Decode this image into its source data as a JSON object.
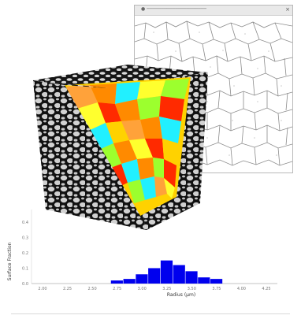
{
  "window": {
    "title": "● ─────────────────────",
    "close_glyph": "×"
  },
  "cube": {
    "face_colors": [
      "#ff2a00",
      "#ff8a00",
      "#ffd200",
      "#ffff2e",
      "#9cff2e",
      "#21f0ff",
      "#ffa23a"
    ]
  },
  "chart_data": {
    "type": "bar",
    "ylabel": "Surface Fraction",
    "xlabel": "Radius (µm)",
    "bar_color": "#0000ee",
    "x_ticks": [
      "2.00",
      "2.25",
      "2.50",
      "2.75",
      "3.00",
      "3.25",
      "3.50",
      "3.75",
      "4.00",
      "4.25"
    ],
    "y_ticks": [
      "0.4",
      "0.3",
      "0.2",
      "0.1",
      "0.0"
    ],
    "ylim": [
      0,
      0.45
    ],
    "bins": [
      {
        "center": 2.75,
        "value": 0.02
      },
      {
        "center": 2.875,
        "value": 0.03
      },
      {
        "center": 3.0,
        "value": 0.06
      },
      {
        "center": 3.125,
        "value": 0.1
      },
      {
        "center": 3.25,
        "value": 0.15
      },
      {
        "center": 3.375,
        "value": 0.12
      },
      {
        "center": 3.5,
        "value": 0.08
      },
      {
        "center": 3.625,
        "value": 0.04
      },
      {
        "center": 3.75,
        "value": 0.03
      }
    ]
  }
}
